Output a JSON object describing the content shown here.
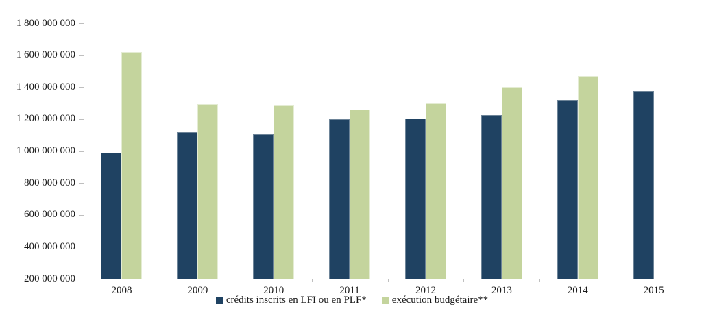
{
  "chart_data": {
    "type": "bar",
    "title": "",
    "xlabel": "",
    "ylabel": "",
    "categories": [
      "2008",
      "2009",
      "2010",
      "2011",
      "2012",
      "2013",
      "2014",
      "2015"
    ],
    "series": [
      {
        "name": "crédits inscrits en LFI ou en PLF*",
        "color": "#1F4262",
        "values": [
          990000000,
          1120000000,
          1105000000,
          1200000000,
          1205000000,
          1225000000,
          1320000000,
          1375000000
        ]
      },
      {
        "name": "exécution budgétaire**",
        "color": "#C4D49D",
        "values": [
          1620000000,
          1295000000,
          1285000000,
          1260000000,
          1300000000,
          1400000000,
          1470000000,
          null
        ]
      }
    ],
    "ylim": [
      200000000,
      1800000000
    ],
    "ytick_step": 200000000,
    "ytick_labels": [
      "200 000 000",
      "400 000 000",
      "600 000 000",
      "800 000 000",
      "1 000 000 000",
      "1 200 000 000",
      "1 400 000 000",
      "1 600 000 000",
      "1 800 000 000"
    ],
    "grid": false,
    "legend_position": "bottom",
    "axis_color": "#BFBFBF",
    "text_color": "#1A1A1A"
  }
}
